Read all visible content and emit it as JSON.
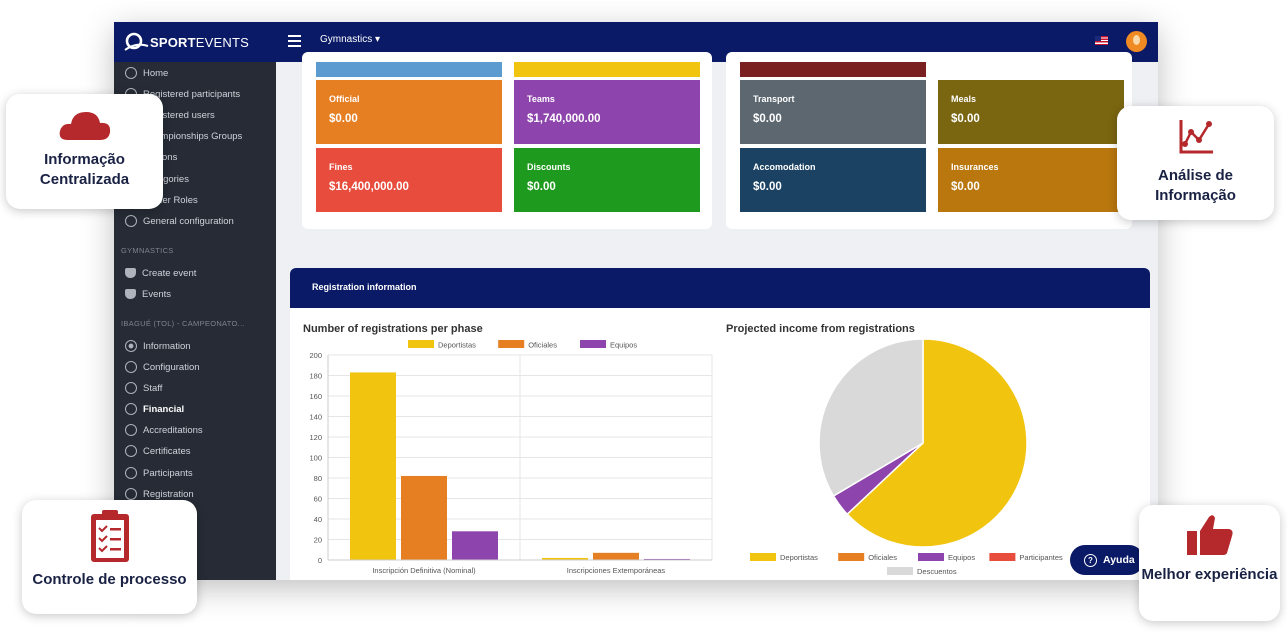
{
  "app": {
    "brand_bold": "SPORT",
    "brand_light": "EVENTS",
    "sport": "Gymnastics"
  },
  "sidebar": {
    "items": [
      {
        "label": "Home"
      },
      {
        "label": "Registered participants"
      },
      {
        "label": "Registered users"
      },
      {
        "label": "Championships Groups"
      },
      {
        "label": "Stations"
      },
      {
        "label": "Categories"
      },
      {
        "label": "Officer Roles"
      },
      {
        "label": "General configuration"
      }
    ],
    "gym_head": "GYMNASTICS",
    "gym_items": [
      {
        "label": "Create event"
      },
      {
        "label": "Events"
      }
    ],
    "event_head": "IBAGUÉ (TOL) - CAMPEONATO...",
    "event_items": [
      {
        "label": "Information"
      },
      {
        "label": "Configuration"
      },
      {
        "label": "Staff"
      },
      {
        "label": "Financial"
      },
      {
        "label": "Accreditations"
      },
      {
        "label": "Certificates"
      },
      {
        "label": "Participants"
      },
      {
        "label": "Registration"
      }
    ]
  },
  "tiles_left": [
    {
      "title": "Official",
      "value": "$0.00",
      "color": "#e67e22"
    },
    {
      "title": "Teams",
      "value": "$1,740,000.00",
      "color": "#8e44ad"
    },
    {
      "title": "Fines",
      "value": "$16,400,000.00",
      "color": "#e74c3c"
    },
    {
      "title": "Discounts",
      "value": "$0.00",
      "color": "#1e9a1e"
    }
  ],
  "tiles_right": [
    {
      "title": "Transport",
      "value": "$0.00",
      "color": "#5c6770"
    },
    {
      "title": "Meals",
      "value": "$0.00",
      "color": "#7a6510"
    },
    {
      "title": "Accomodation",
      "value": "$0.00",
      "color": "#1b4263"
    },
    {
      "title": "Insurances",
      "value": "$0.00",
      "color": "#b9770e"
    }
  ],
  "registration": {
    "header": "Registration information",
    "bar_title": "Number of registrations per phase",
    "pie_title": "Projected income from registrations"
  },
  "chart_data": [
    {
      "type": "bar",
      "title": "Number of registrations per phase",
      "categories": [
        "Inscripción Definitiva (Nominal)",
        "Inscripciones Extemporáneas"
      ],
      "series": [
        {
          "name": "Deportistas",
          "values": [
            183,
            2
          ],
          "color": "#f1c40f"
        },
        {
          "name": "Oficiales",
          "values": [
            82,
            7
          ],
          "color": "#e67e22"
        },
        {
          "name": "Equipos",
          "values": [
            28,
            1
          ],
          "color": "#8e44ad"
        }
      ],
      "ylim": [
        0,
        200
      ],
      "yticks": [
        0,
        20,
        40,
        60,
        80,
        100,
        120,
        140,
        160,
        180,
        200
      ],
      "grid": true,
      "legend": "top"
    },
    {
      "type": "pie",
      "title": "Projected income from registrations",
      "labels": [
        "Deportistas",
        "Oficiales",
        "Equipos",
        "Participantes",
        "",
        "Descuentos"
      ],
      "values": [
        63,
        0,
        3.5,
        0,
        0,
        33.5
      ],
      "colors": [
        "#f1c40f",
        "#e67e22",
        "#8e44ad",
        "#e74c3c",
        "#e8e8e8",
        "#d9d9d9"
      ],
      "legend": "bottom"
    }
  ],
  "callouts": {
    "info": "Informação Centralizada",
    "analysis": "Análise de Informação",
    "control": "Controle de processo",
    "experience": "Melhor experiência"
  },
  "help": "Ayuda"
}
